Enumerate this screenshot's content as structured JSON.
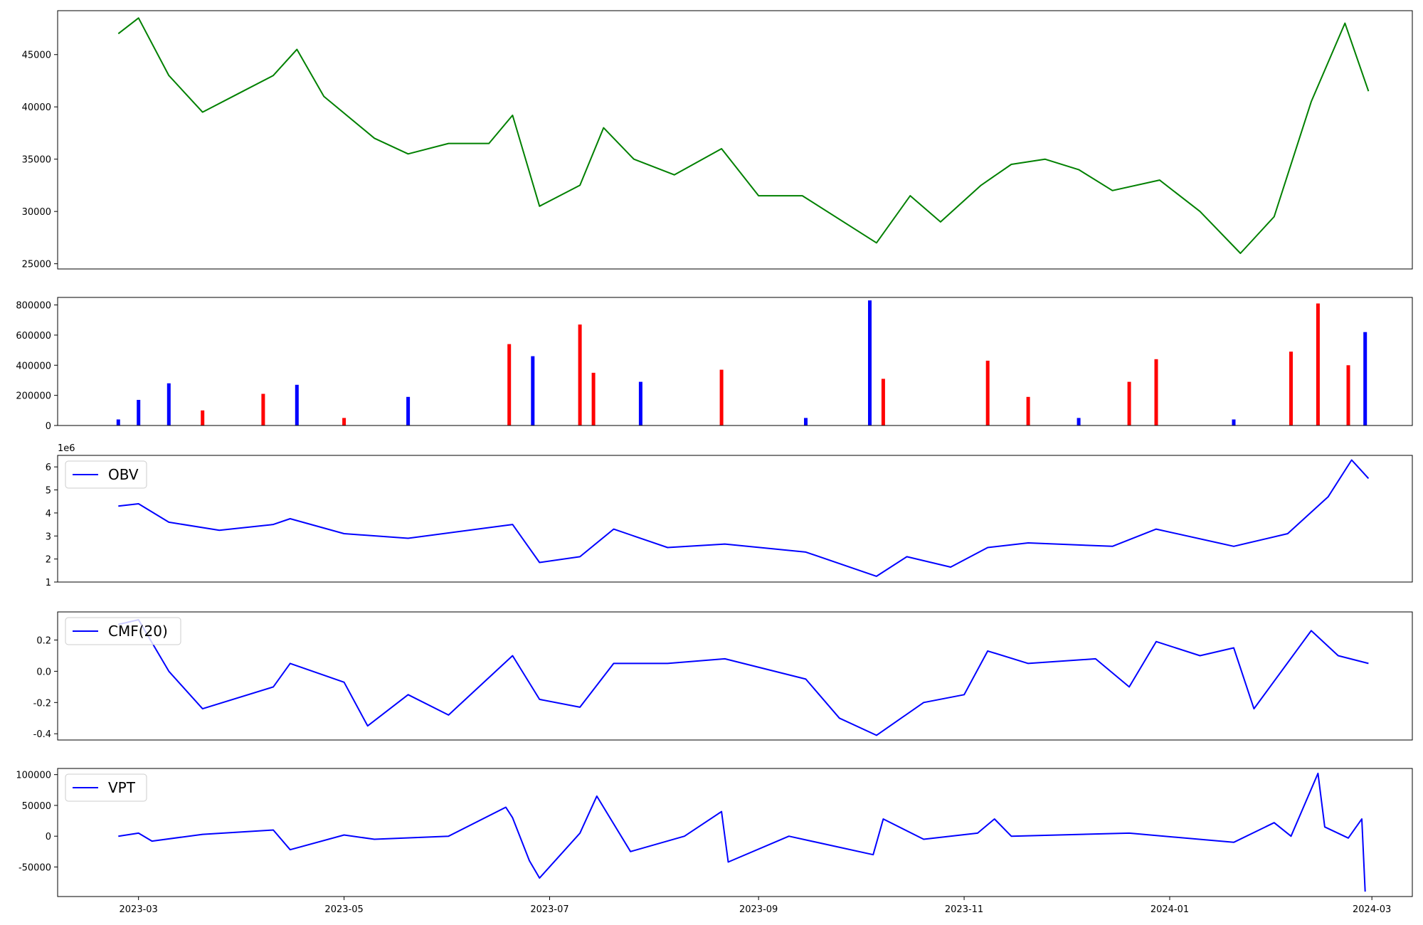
{
  "chart_data": [
    {
      "id": "price",
      "type": "line",
      "color": "#008000",
      "ylim": [
        24500,
        49200
      ],
      "yticks": [
        25000,
        30000,
        35000,
        40000,
        45000
      ],
      "x": [
        "2023-02-23",
        "2023-03-01",
        "2023-03-10",
        "2023-03-20",
        "2023-04-01",
        "2023-04-10",
        "2023-04-17",
        "2023-04-25",
        "2023-05-10",
        "2023-05-20",
        "2023-06-01",
        "2023-06-13",
        "2023-06-20",
        "2023-06-28",
        "2023-07-10",
        "2023-07-17",
        "2023-07-26",
        "2023-08-07",
        "2023-08-21",
        "2023-09-01",
        "2023-09-14",
        "2023-10-06",
        "2023-10-16",
        "2023-10-25",
        "2023-11-06",
        "2023-11-15",
        "2023-11-25",
        "2023-12-05",
        "2023-12-15",
        "2023-12-29",
        "2024-01-10",
        "2024-01-22",
        "2024-02-01",
        "2024-02-12",
        "2024-02-22",
        "2024-02-29"
      ],
      "y": [
        47000,
        48500,
        43000,
        39500,
        41500,
        43000,
        45500,
        41000,
        37000,
        35500,
        36500,
        36500,
        39200,
        30500,
        32500,
        38000,
        35000,
        33500,
        36000,
        31500,
        31500,
        27000,
        31500,
        29000,
        32500,
        34500,
        35000,
        34000,
        32000,
        33000,
        30000,
        26000,
        29500,
        40500,
        48000,
        41500
      ]
    },
    {
      "id": "volume",
      "type": "bar",
      "ylim": [
        0,
        850000
      ],
      "yticks": [
        0,
        200000,
        400000,
        600000,
        800000
      ],
      "x": [
        "2023-02-23",
        "2023-03-01",
        "2023-03-10",
        "2023-03-20",
        "2023-04-07",
        "2023-04-17",
        "2023-05-01",
        "2023-05-20",
        "2023-06-19",
        "2023-06-26",
        "2023-07-10",
        "2023-07-14",
        "2023-07-28",
        "2023-08-21",
        "2023-09-15",
        "2023-10-04",
        "2023-10-08",
        "2023-11-08",
        "2023-11-20",
        "2023-12-05",
        "2023-12-20",
        "2023-12-28",
        "2024-01-20",
        "2024-02-06",
        "2024-02-14",
        "2024-02-23",
        "2024-02-28"
      ],
      "values": [
        40000,
        170000,
        280000,
        100000,
        210000,
        270000,
        50000,
        190000,
        540000,
        460000,
        670000,
        350000,
        290000,
        370000,
        50000,
        830000,
        310000,
        430000,
        190000,
        50000,
        290000,
        440000,
        40000,
        490000,
        810000,
        400000,
        620000
      ],
      "colors": [
        "blue",
        "blue",
        "blue",
        "red",
        "red",
        "blue",
        "red",
        "blue",
        "red",
        "blue",
        "red",
        "red",
        "blue",
        "red",
        "blue",
        "blue",
        "red",
        "red",
        "red",
        "blue",
        "red",
        "red",
        "blue",
        "red",
        "red",
        "red",
        "blue"
      ]
    },
    {
      "id": "obv",
      "type": "line",
      "color": "#0000ff",
      "ylim": [
        1000000,
        6500000
      ],
      "yticks": [
        1,
        2,
        3,
        4,
        5,
        6
      ],
      "offset_label": "1e6",
      "legend": "OBV",
      "x": [
        "2023-02-23",
        "2023-03-01",
        "2023-03-10",
        "2023-03-25",
        "2023-04-10",
        "2023-04-15",
        "2023-05-01",
        "2023-05-20",
        "2023-06-20",
        "2023-06-28",
        "2023-07-10",
        "2023-07-20",
        "2023-08-05",
        "2023-08-22",
        "2023-09-15",
        "2023-10-06",
        "2023-10-15",
        "2023-10-28",
        "2023-11-08",
        "2023-11-20",
        "2023-12-15",
        "2023-12-28",
        "2024-01-20",
        "2024-02-05",
        "2024-02-17",
        "2024-02-24",
        "2024-02-29"
      ],
      "y": [
        4300000,
        4400000,
        3600000,
        3250000,
        3500000,
        3750000,
        3100000,
        2900000,
        3500000,
        1850000,
        2100000,
        3300000,
        2500000,
        2650000,
        2300000,
        1250000,
        2100000,
        1650000,
        2500000,
        2700000,
        2550000,
        3300000,
        2550000,
        3100000,
        4700000,
        6300000,
        5500000
      ]
    },
    {
      "id": "cmf",
      "type": "line",
      "color": "#0000ff",
      "ylim": [
        -0.44,
        0.38
      ],
      "yticks": [
        -0.4,
        -0.2,
        0.0,
        0.2
      ],
      "legend": "CMF(20)",
      "x": [
        "2023-02-23",
        "2023-03-01",
        "2023-03-10",
        "2023-03-20",
        "2023-04-10",
        "2023-04-15",
        "2023-05-01",
        "2023-05-08",
        "2023-05-20",
        "2023-06-01",
        "2023-06-20",
        "2023-06-28",
        "2023-07-10",
        "2023-07-20",
        "2023-08-05",
        "2023-08-22",
        "2023-09-15",
        "2023-09-25",
        "2023-10-06",
        "2023-10-20",
        "2023-11-01",
        "2023-11-08",
        "2023-11-20",
        "2023-12-10",
        "2023-12-20",
        "2023-12-28",
        "2024-01-10",
        "2024-01-20",
        "2024-01-26",
        "2024-02-12",
        "2024-02-20",
        "2024-02-29"
      ],
      "y": [
        0.3,
        0.33,
        0.0,
        -0.24,
        -0.1,
        0.05,
        -0.07,
        -0.35,
        -0.15,
        -0.28,
        0.1,
        -0.18,
        -0.23,
        0.05,
        0.05,
        0.08,
        -0.05,
        -0.3,
        -0.41,
        -0.2,
        -0.15,
        0.13,
        0.05,
        0.08,
        -0.1,
        0.19,
        0.1,
        0.15,
        -0.24,
        0.26,
        0.1,
        0.05
      ]
    },
    {
      "id": "vpt",
      "type": "line",
      "color": "#0000ff",
      "ylim": [
        -98000,
        110000
      ],
      "yticks": [
        -50000,
        0,
        50000,
        100000
      ],
      "legend": "VPT",
      "x": [
        "2023-02-23",
        "2023-03-01",
        "2023-03-05",
        "2023-03-20",
        "2023-04-10",
        "2023-04-15",
        "2023-05-01",
        "2023-05-10",
        "2023-06-01",
        "2023-06-18",
        "2023-06-20",
        "2023-06-25",
        "2023-06-28",
        "2023-07-10",
        "2023-07-15",
        "2023-07-20",
        "2023-07-25",
        "2023-08-10",
        "2023-08-21",
        "2023-08-23",
        "2023-09-10",
        "2023-10-05",
        "2023-10-08",
        "2023-10-20",
        "2023-11-05",
        "2023-11-10",
        "2023-11-15",
        "2023-12-20",
        "2024-01-20",
        "2024-02-01",
        "2024-02-06",
        "2024-02-14",
        "2024-02-16",
        "2024-02-23",
        "2024-02-27",
        "2024-02-28"
      ],
      "y": [
        0,
        5000,
        -8000,
        3000,
        10000,
        -22000,
        2000,
        -5000,
        0,
        47000,
        30000,
        -40000,
        -68000,
        5000,
        65000,
        20000,
        -25000,
        0,
        40000,
        -42000,
        0,
        -30000,
        28000,
        -5000,
        5000,
        28000,
        0,
        5000,
        -10000,
        22000,
        0,
        102000,
        15000,
        -3000,
        28000,
        -90000
      ]
    }
  ],
  "x_axis": {
    "ticks": [
      "2023-03",
      "2023-05",
      "2023-07",
      "2023-09",
      "2023-11",
      "2024-01",
      "2024-03"
    ]
  }
}
